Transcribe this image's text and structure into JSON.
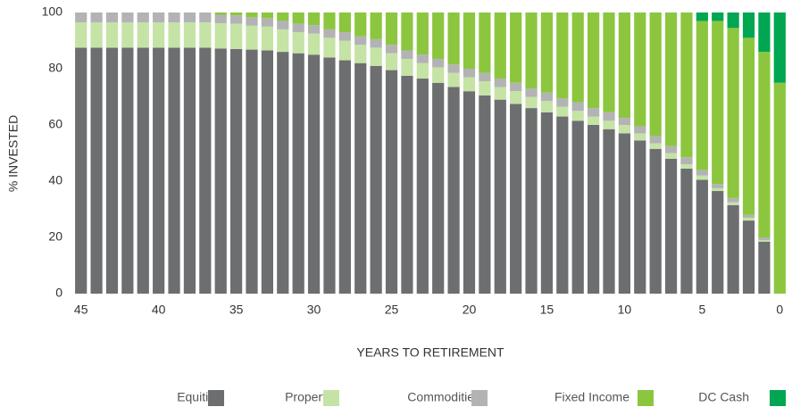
{
  "chart_data": {
    "type": "stacked_bar",
    "x_label": "YEARS TO RETIREMENT",
    "y_label": "% INVESTED",
    "x": [
      45,
      44,
      43,
      42,
      41,
      40,
      39,
      38,
      37,
      36,
      35,
      34,
      33,
      32,
      31,
      30,
      29,
      28,
      27,
      26,
      25,
      24,
      23,
      22,
      21,
      20,
      19,
      18,
      17,
      16,
      15,
      14,
      13,
      12,
      11,
      10,
      9,
      8,
      7,
      6,
      5,
      4,
      3,
      2,
      1,
      0
    ],
    "xlim": [
      45.5,
      -0.5
    ],
    "xticks": [
      45,
      40,
      35,
      30,
      25,
      20,
      15,
      10,
      5,
      0
    ],
    "ylim": [
      0,
      100
    ],
    "yticks": [
      0,
      20,
      40,
      60,
      80,
      100
    ],
    "grid": false,
    "legend": "bottom-right",
    "series": [
      {
        "name": "Equities",
        "color": "#6d6e70",
        "values": [
          87.5,
          87.5,
          87.5,
          87.5,
          87.5,
          87.5,
          87.5,
          87.5,
          87.5,
          87.2,
          87,
          86.8,
          86.5,
          86,
          85.5,
          85,
          84,
          83,
          82,
          81,
          79.5,
          77.5,
          76.5,
          75,
          73.5,
          72,
          70.5,
          69,
          67.5,
          66,
          64.5,
          63,
          61.5,
          60,
          58.5,
          57,
          54.5,
          51.5,
          48,
          44.5,
          40.5,
          36.5,
          31.5,
          26,
          18.5,
          0
        ]
      },
      {
        "name": "Property",
        "color": "#c5e3a5",
        "values": [
          9,
          9,
          9,
          9,
          9,
          9,
          9,
          9,
          9,
          9,
          9,
          8.5,
          8.5,
          8,
          7.5,
          7.5,
          7,
          7,
          6.5,
          6.5,
          6,
          6,
          5.5,
          5.5,
          5,
          5,
          5,
          4.5,
          4.5,
          4,
          4,
          3.5,
          3.5,
          3,
          3,
          3,
          2.5,
          2,
          2,
          1.5,
          1.5,
          1,
          1,
          1,
          0.5,
          0
        ]
      },
      {
        "name": "Commodities",
        "color": "#b3b3b5",
        "values": [
          3.5,
          3.5,
          3.5,
          3.5,
          3.5,
          3.5,
          3.5,
          3.5,
          3.5,
          3,
          3,
          3,
          3,
          3,
          3,
          3,
          3,
          3,
          3,
          3,
          3,
          3,
          3,
          3,
          3,
          3,
          3,
          3,
          3,
          3,
          3,
          3,
          3,
          3,
          3,
          2.5,
          2.5,
          2.5,
          2.5,
          2.5,
          2,
          1.5,
          1.5,
          1,
          1,
          0
        ]
      },
      {
        "name": "Fixed Income",
        "color": "#8cc63f",
        "values": [
          0,
          0,
          0,
          0,
          0,
          0,
          0,
          0,
          0,
          0.8,
          1,
          1.7,
          2,
          3,
          4,
          4.5,
          6,
          7,
          8.5,
          9.5,
          11.5,
          13.5,
          15,
          16.5,
          18.5,
          20,
          21.5,
          23.5,
          25,
          27,
          28.5,
          30.5,
          32,
          34,
          35.5,
          37.5,
          40.5,
          44,
          47.5,
          51.5,
          53,
          58,
          60.5,
          63,
          66,
          75
        ]
      },
      {
        "name": "DC Cash",
        "color": "#00a651",
        "values": [
          0,
          0,
          0,
          0,
          0,
          0,
          0,
          0,
          0,
          0,
          0,
          0,
          0,
          0,
          0,
          0,
          0,
          0,
          0,
          0,
          0,
          0,
          0,
          0,
          0,
          0,
          0,
          0,
          0,
          0,
          0,
          0,
          0,
          0,
          0,
          0,
          0,
          0,
          0,
          0,
          3,
          3,
          5.5,
          9,
          14,
          25
        ]
      }
    ]
  }
}
